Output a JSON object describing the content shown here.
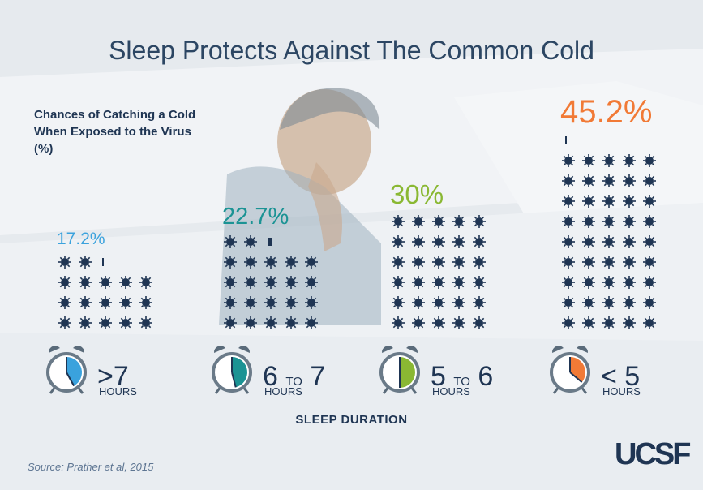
{
  "title": "Sleep Protects Against The Common Cold",
  "subtitle": "Chances of Catching a Cold When Exposed to the Virus (%)",
  "source": "Source: Prather et al, 2015",
  "logo_text": "UCSF",
  "chart_data": {
    "type": "bar",
    "title": "Sleep Protects Against The Common Cold",
    "ylabel": "Chances of Catching a Cold When Exposed to the Virus (%)",
    "xlabel": "SLEEP DURATION",
    "categories": [
      {
        "range": ">7",
        "unit": "HOURS",
        "label": "17.2%",
        "value": 17.2,
        "color": "#3aa2dd"
      },
      {
        "range": "6 TO 7",
        "unit": "HOURS",
        "label": "22.7%",
        "value": 22.7,
        "color": "#1b9394"
      },
      {
        "range": "5 TO 6",
        "unit": "HOURS",
        "label": "30%",
        "value": 30,
        "color": "#8ab833"
      },
      {
        "range": "< 5",
        "unit": "HOURS",
        "label": "45.2%",
        "value": 45.2,
        "color": "#f17a36"
      }
    ],
    "ylim": [
      0,
      50
    ]
  }
}
